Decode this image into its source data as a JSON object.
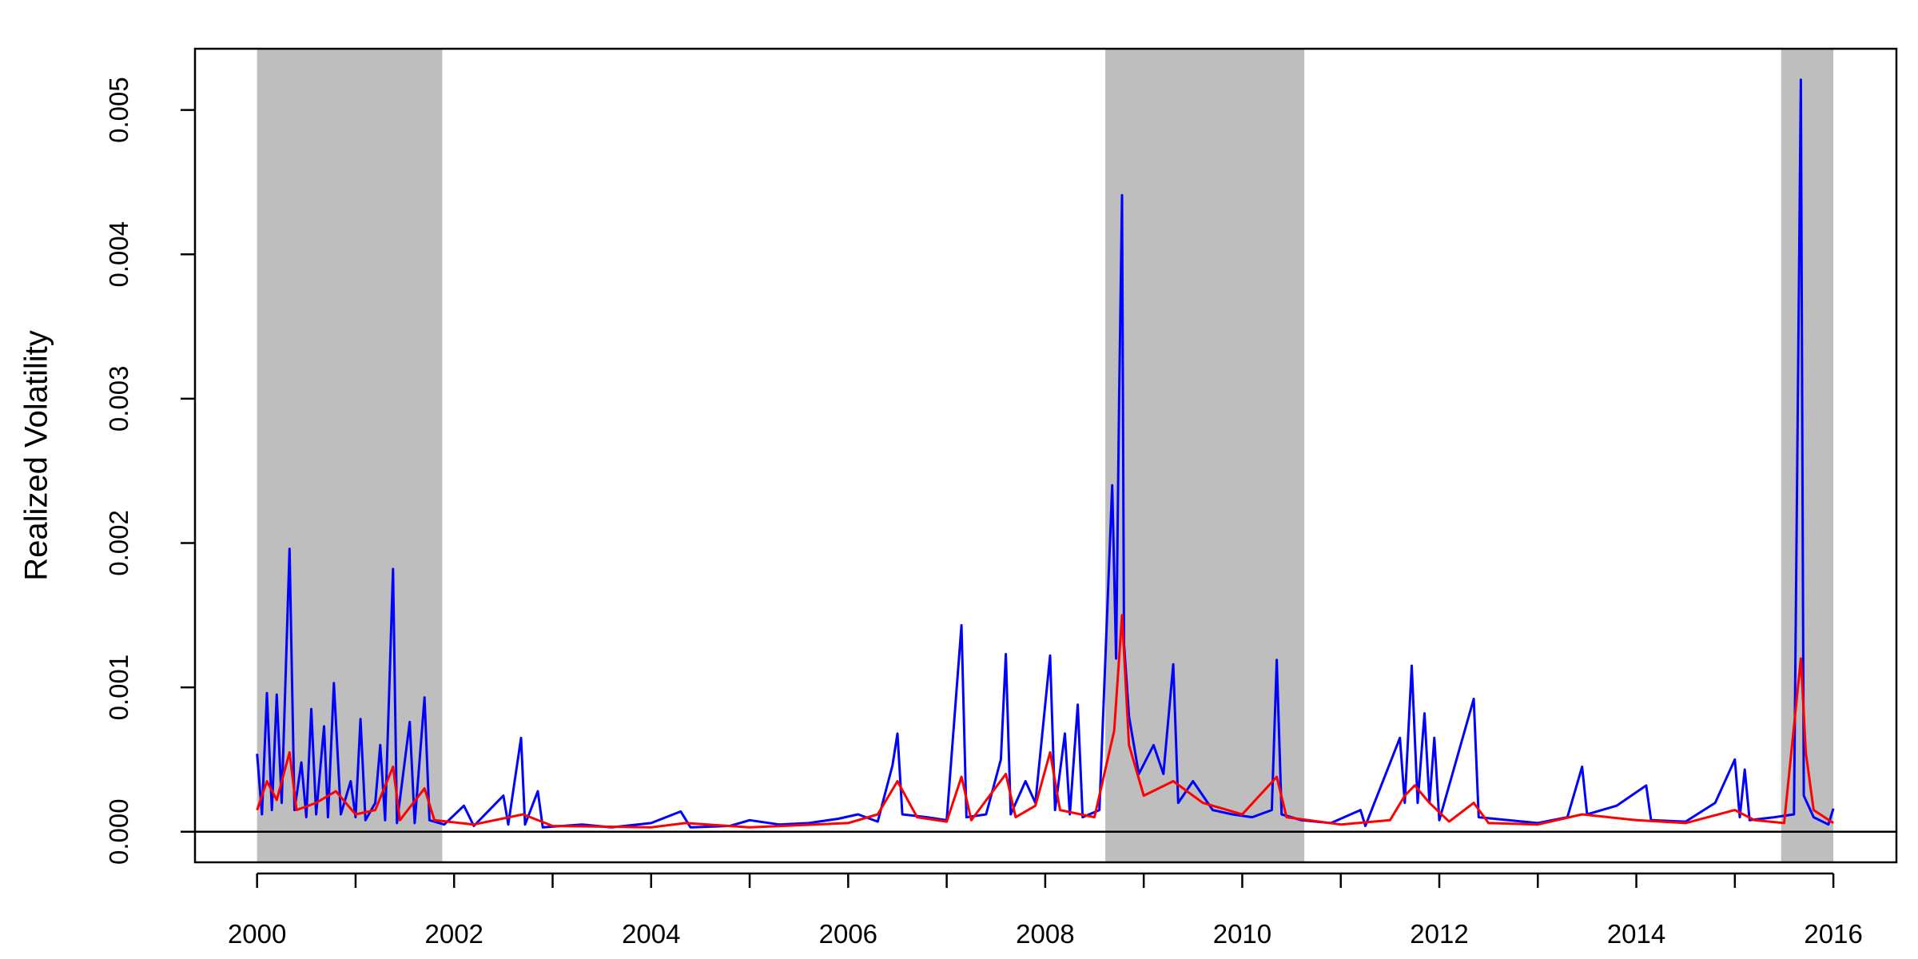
{
  "chart_data": {
    "type": "line",
    "ylabel": "Realized Volatility",
    "xlim": [
      1999.37,
      2016.64
    ],
    "ylim": [
      -0.000212,
      0.005424
    ],
    "xticks": [
      2000,
      2002,
      2004,
      2006,
      2008,
      2010,
      2012,
      2014,
      2016
    ],
    "xminor_ticks": [
      2001,
      2003,
      2005,
      2007,
      2009,
      2011,
      2013,
      2015
    ],
    "yticks": [
      {
        "value": 0,
        "label": "0.000"
      },
      {
        "value": 0.001,
        "label": "0.001"
      },
      {
        "value": 0.002,
        "label": "0.002"
      },
      {
        "value": 0.003,
        "label": "0.003"
      },
      {
        "value": 0.004,
        "label": "0.004"
      },
      {
        "value": 0.005,
        "label": "0.005"
      }
    ],
    "hline": 0,
    "shade_color": "#bebebe",
    "shaded_ranges": [
      [
        2000,
        2001.88
      ],
      [
        2008.61,
        2010.63
      ],
      [
        2015.47,
        2016
      ]
    ],
    "series": [
      {
        "color": "#0000ff",
        "x": [
          2000.0,
          2000.05,
          2000.1,
          2000.15,
          2000.2,
          2000.25,
          2000.33,
          2000.38,
          2000.45,
          2000.5,
          2000.55,
          2000.6,
          2000.68,
          2000.72,
          2000.78,
          2000.85,
          2000.95,
          2001.0,
          2001.05,
          2001.1,
          2001.2,
          2001.25,
          2001.3,
          2001.38,
          2001.42,
          2001.55,
          2001.6,
          2001.7,
          2001.75,
          2001.9,
          2002.1,
          2002.2,
          2002.5,
          2002.55,
          2002.68,
          2002.72,
          2002.85,
          2002.9,
          2003.3,
          2003.6,
          2004.0,
          2004.3,
          2004.4,
          2004.8,
          2005.0,
          2005.3,
          2005.6,
          2005.9,
          2006.1,
          2006.3,
          2006.45,
          2006.5,
          2006.55,
          2006.8,
          2007.0,
          2007.15,
          2007.2,
          2007.4,
          2007.55,
          2007.6,
          2007.65,
          2007.8,
          2007.9,
          2008.05,
          2008.1,
          2008.2,
          2008.25,
          2008.33,
          2008.38,
          2008.55,
          2008.68,
          2008.72,
          2008.75,
          2008.78,
          2008.8,
          2008.85,
          2008.95,
          2009.1,
          2009.2,
          2009.3,
          2009.35,
          2009.5,
          2009.7,
          2009.9,
          2010.1,
          2010.3,
          2010.35,
          2010.4,
          2010.6,
          2010.9,
          2011.2,
          2011.25,
          2011.6,
          2011.65,
          2011.72,
          2011.78,
          2011.85,
          2011.9,
          2011.95,
          2012.0,
          2012.35,
          2012.4,
          2012.7,
          2013.0,
          2013.3,
          2013.45,
          2013.5,
          2013.8,
          2014.1,
          2014.15,
          2014.5,
          2014.8,
          2015.0,
          2015.05,
          2015.1,
          2015.15,
          2015.4,
          2015.6,
          2015.67,
          2015.7,
          2015.8,
          2015.95,
          2016.0
        ],
        "values": [
          0.00054,
          0.00012,
          0.00096,
          0.00015,
          0.00095,
          0.0002,
          0.00196,
          0.00015,
          0.00048,
          0.0001,
          0.00085,
          0.00012,
          0.00073,
          0.0001,
          0.00103,
          0.00012,
          0.00035,
          0.0001,
          0.00078,
          8e-05,
          0.0002,
          0.0006,
          8e-05,
          0.00182,
          6e-05,
          0.00076,
          6e-05,
          0.00093,
          8e-05,
          5e-05,
          0.00018,
          4e-05,
          0.00025,
          5e-05,
          0.00065,
          5e-05,
          0.00028,
          3e-05,
          5e-05,
          3e-05,
          6e-05,
          0.00014,
          3e-05,
          4e-05,
          8e-05,
          5e-05,
          6e-05,
          9e-05,
          0.00012,
          7e-05,
          0.00046,
          0.00068,
          0.00012,
          0.0001,
          8e-05,
          0.00143,
          0.0001,
          0.00012,
          0.0005,
          0.00123,
          0.00012,
          0.00035,
          0.0002,
          0.00122,
          0.00015,
          0.00068,
          0.00012,
          0.00088,
          0.0001,
          0.00015,
          0.0024,
          0.0012,
          0.00297,
          0.00441,
          0.0013,
          0.0008,
          0.0004,
          0.0006,
          0.0004,
          0.00116,
          0.0002,
          0.00035,
          0.00015,
          0.00012,
          0.0001,
          0.00015,
          0.00119,
          0.00012,
          8e-05,
          6e-05,
          0.00015,
          4e-05,
          0.00065,
          0.0002,
          0.00115,
          0.0002,
          0.00082,
          0.0002,
          0.00065,
          8e-05,
          0.00092,
          0.0001,
          8e-05,
          6e-05,
          0.0001,
          0.00045,
          0.00012,
          0.00018,
          0.00032,
          8e-05,
          7e-05,
          0.0002,
          0.0005,
          0.0001,
          0.00043,
          8e-05,
          0.0001,
          0.00012,
          0.00521,
          0.00025,
          0.0001,
          5e-05,
          0.00016
        ]
      },
      {
        "color": "#ff0000",
        "x": [
          2000.0,
          2000.1,
          2000.2,
          2000.33,
          2000.4,
          2000.6,
          2000.8,
          2001.0,
          2001.2,
          2001.38,
          2001.45,
          2001.7,
          2001.8,
          2002.2,
          2002.7,
          2003.0,
          2004.0,
          2004.35,
          2005.0,
          2006.0,
          2006.3,
          2006.5,
          2006.7,
          2007.0,
          2007.15,
          2007.25,
          2007.6,
          2007.7,
          2007.9,
          2008.05,
          2008.15,
          2008.5,
          2008.7,
          2008.78,
          2008.85,
          2009.0,
          2009.3,
          2009.6,
          2010.0,
          2010.35,
          2010.45,
          2011.0,
          2011.5,
          2011.65,
          2011.75,
          2011.9,
          2012.1,
          2012.35,
          2012.5,
          2013.0,
          2013.45,
          2014.0,
          2014.5,
          2015.0,
          2015.2,
          2015.5,
          2015.67,
          2015.72,
          2015.8,
          2016.0
        ],
        "values": [
          0.00015,
          0.00035,
          0.00022,
          0.00055,
          0.00015,
          0.0002,
          0.00028,
          0.00012,
          0.00015,
          0.00045,
          8e-05,
          0.0003,
          8e-05,
          5e-05,
          0.00012,
          4e-05,
          3e-05,
          6e-05,
          3e-05,
          6e-05,
          0.00012,
          0.00035,
          0.0001,
          7e-05,
          0.00038,
          8e-05,
          0.0004,
          0.0001,
          0.00018,
          0.00055,
          0.00015,
          0.0001,
          0.0007,
          0.0015,
          0.0006,
          0.00025,
          0.00035,
          0.0002,
          0.00012,
          0.00038,
          0.0001,
          5e-05,
          8e-05,
          0.00025,
          0.00032,
          0.0002,
          7e-05,
          0.0002,
          6e-05,
          5e-05,
          0.00012,
          8e-05,
          6e-05,
          0.00015,
          8e-05,
          6e-05,
          0.0012,
          0.00055,
          0.00015,
          6e-05
        ]
      }
    ]
  }
}
